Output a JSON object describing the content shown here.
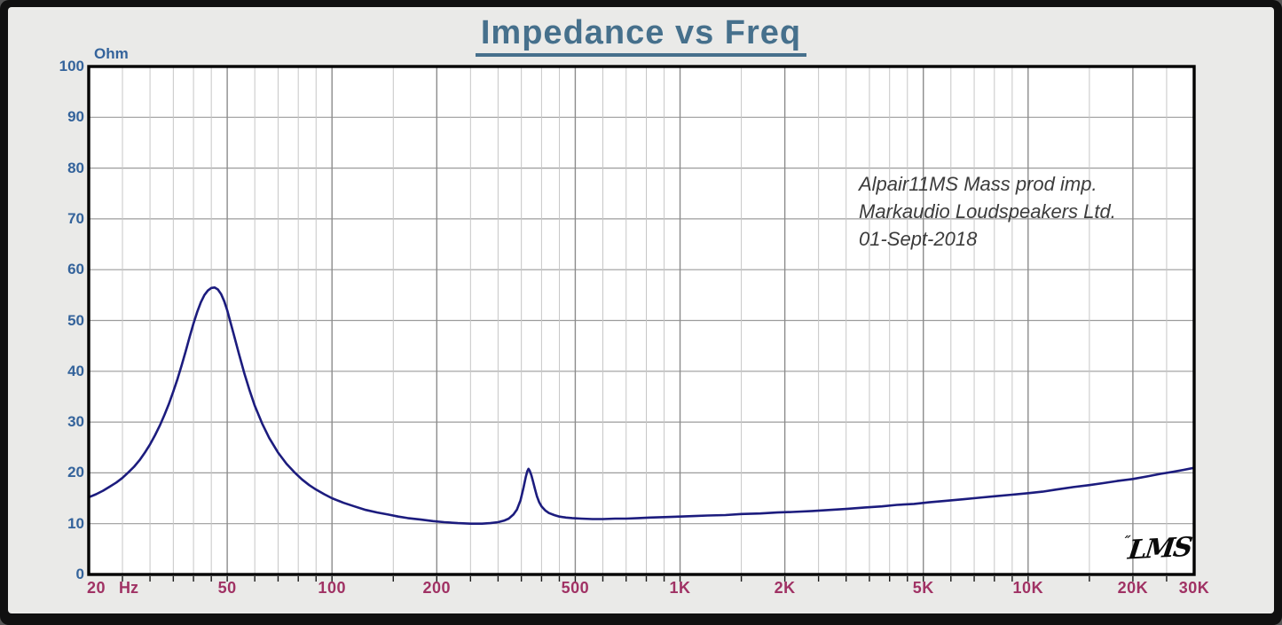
{
  "title": "Impedance vs Freq",
  "y_axis": {
    "unit_label": "Ohm",
    "ticks": [
      0,
      10,
      20,
      30,
      40,
      50,
      60,
      70,
      80,
      90,
      100
    ]
  },
  "x_axis": {
    "unit_label": "Hz",
    "labels": [
      {
        "f": 20,
        "text": "20"
      },
      {
        "f": 50,
        "text": "50"
      },
      {
        "f": 100,
        "text": "100"
      },
      {
        "f": 200,
        "text": "200"
      },
      {
        "f": 500,
        "text": "500"
      },
      {
        "f": 1000,
        "text": "1K"
      },
      {
        "f": 2000,
        "text": "2K"
      },
      {
        "f": 5000,
        "text": "5K"
      },
      {
        "f": 10000,
        "text": "10K"
      },
      {
        "f": 20000,
        "text": "20K"
      },
      {
        "f": 30000,
        "text": "30K"
      }
    ]
  },
  "annotation": {
    "lines": [
      "Alpair11MS Mass prod imp.",
      "Markaudio Loudspeakers Ltd.",
      "01-Sept-2018"
    ]
  },
  "logo": {
    "mark": "˝",
    "text": "LMS"
  },
  "colors": {
    "title": "#46708c",
    "y_label": "#34639b",
    "x_label": "#a03264",
    "curve": "#1c1c7e",
    "grid_major": "#8c8c8c",
    "grid_minor": "#c6c6c6",
    "grid_horizontal": "#9c9c9c",
    "plot_border": "#000000",
    "plot_background": "#ffffff",
    "page_background": "#eaeae8",
    "frame": "#101010"
  },
  "chart_data": {
    "type": "line",
    "title": "Impedance vs Freq",
    "xlabel": "Hz",
    "ylabel": "Ohm",
    "x_scale": "log",
    "xlim": [
      20,
      30000
    ],
    "ylim": [
      0,
      100
    ],
    "y_ticks": [
      0,
      10,
      20,
      30,
      40,
      50,
      60,
      70,
      80,
      90,
      100
    ],
    "x_tick_values": [
      20,
      50,
      100,
      200,
      500,
      1000,
      2000,
      5000,
      10000,
      20000,
      30000
    ],
    "x_tick_labels": [
      "20 Hz",
      "50",
      "100",
      "200",
      "500",
      "1K",
      "2K",
      "5K",
      "10K",
      "20K",
      "30K"
    ],
    "grid": "log minor grid on, multipliers 1,1.5,2,2.5,3,3.5,4,4.5,5,6,7,8,9 per decade",
    "legend_position": "none",
    "series": [
      {
        "name": "Alpair11MS Mass prod imp.",
        "points": [
          [
            20,
            15.2
          ],
          [
            21,
            15.8
          ],
          [
            22,
            16.5
          ],
          [
            23,
            17.3
          ],
          [
            24,
            18.1
          ],
          [
            25,
            19.0
          ],
          [
            26,
            20.1
          ],
          [
            27,
            21.2
          ],
          [
            28,
            22.5
          ],
          [
            29,
            24.0
          ],
          [
            30,
            25.6
          ],
          [
            31,
            27.4
          ],
          [
            32,
            29.3
          ],
          [
            33,
            31.4
          ],
          [
            34,
            33.6
          ],
          [
            35,
            36.0
          ],
          [
            36,
            38.5
          ],
          [
            37,
            41.2
          ],
          [
            38,
            44.0
          ],
          [
            39,
            46.8
          ],
          [
            40,
            49.4
          ],
          [
            41,
            51.7
          ],
          [
            42,
            53.6
          ],
          [
            43,
            55.0
          ],
          [
            44,
            55.9
          ],
          [
            45,
            56.4
          ],
          [
            46,
            56.5
          ],
          [
            47,
            56.1
          ],
          [
            48,
            55.2
          ],
          [
            49,
            53.8
          ],
          [
            50,
            52.0
          ],
          [
            52,
            47.7
          ],
          [
            54,
            43.5
          ],
          [
            56,
            39.6
          ],
          [
            58,
            36.2
          ],
          [
            60,
            33.2
          ],
          [
            63,
            29.7
          ],
          [
            66,
            26.9
          ],
          [
            70,
            24.0
          ],
          [
            74,
            21.8
          ],
          [
            78,
            20.1
          ],
          [
            82,
            18.7
          ],
          [
            86,
            17.6
          ],
          [
            90,
            16.7
          ],
          [
            95,
            15.8
          ],
          [
            100,
            15.0
          ],
          [
            108,
            14.1
          ],
          [
            116,
            13.4
          ],
          [
            125,
            12.7
          ],
          [
            135,
            12.2
          ],
          [
            145,
            11.8
          ],
          [
            155,
            11.4
          ],
          [
            165,
            11.1
          ],
          [
            180,
            10.8
          ],
          [
            195,
            10.5
          ],
          [
            210,
            10.3
          ],
          [
            230,
            10.1
          ],
          [
            250,
            10.0
          ],
          [
            270,
            10.0
          ],
          [
            285,
            10.1
          ],
          [
            300,
            10.3
          ],
          [
            312,
            10.6
          ],
          [
            322,
            11.0
          ],
          [
            332,
            11.8
          ],
          [
            340,
            12.8
          ],
          [
            348,
            14.6
          ],
          [
            355,
            17.1
          ],
          [
            360,
            19.1
          ],
          [
            364,
            20.3
          ],
          [
            367,
            20.8
          ],
          [
            370,
            20.4
          ],
          [
            374,
            19.5
          ],
          [
            378,
            18.3
          ],
          [
            383,
            16.8
          ],
          [
            388,
            15.4
          ],
          [
            394,
            14.2
          ],
          [
            400,
            13.4
          ],
          [
            410,
            12.6
          ],
          [
            420,
            12.1
          ],
          [
            435,
            11.7
          ],
          [
            450,
            11.4
          ],
          [
            470,
            11.2
          ],
          [
            490,
            11.1
          ],
          [
            520,
            11.0
          ],
          [
            560,
            10.9
          ],
          [
            600,
            10.9
          ],
          [
            650,
            11.0
          ],
          [
            700,
            11.0
          ],
          [
            760,
            11.1
          ],
          [
            820,
            11.2
          ],
          [
            900,
            11.3
          ],
          [
            1000,
            11.4
          ],
          [
            1100,
            11.5
          ],
          [
            1200,
            11.6
          ],
          [
            1350,
            11.7
          ],
          [
            1500,
            11.9
          ],
          [
            1700,
            12.0
          ],
          [
            1900,
            12.2
          ],
          [
            2100,
            12.3
          ],
          [
            2400,
            12.5
          ],
          [
            2700,
            12.7
          ],
          [
            3000,
            12.9
          ],
          [
            3400,
            13.2
          ],
          [
            3800,
            13.4
          ],
          [
            4200,
            13.7
          ],
          [
            4700,
            13.9
          ],
          [
            5200,
            14.2
          ],
          [
            5800,
            14.5
          ],
          [
            6500,
            14.8
          ],
          [
            7200,
            15.1
          ],
          [
            8000,
            15.4
          ],
          [
            9000,
            15.7
          ],
          [
            10000,
            16.0
          ],
          [
            11000,
            16.3
          ],
          [
            12000,
            16.7
          ],
          [
            13500,
            17.2
          ],
          [
            15000,
            17.6
          ],
          [
            16500,
            18.0
          ],
          [
            18000,
            18.4
          ],
          [
            20000,
            18.8
          ],
          [
            22000,
            19.3
          ],
          [
            24000,
            19.8
          ],
          [
            26000,
            20.2
          ],
          [
            28000,
            20.6
          ],
          [
            30000,
            21.0
          ]
        ]
      }
    ]
  }
}
